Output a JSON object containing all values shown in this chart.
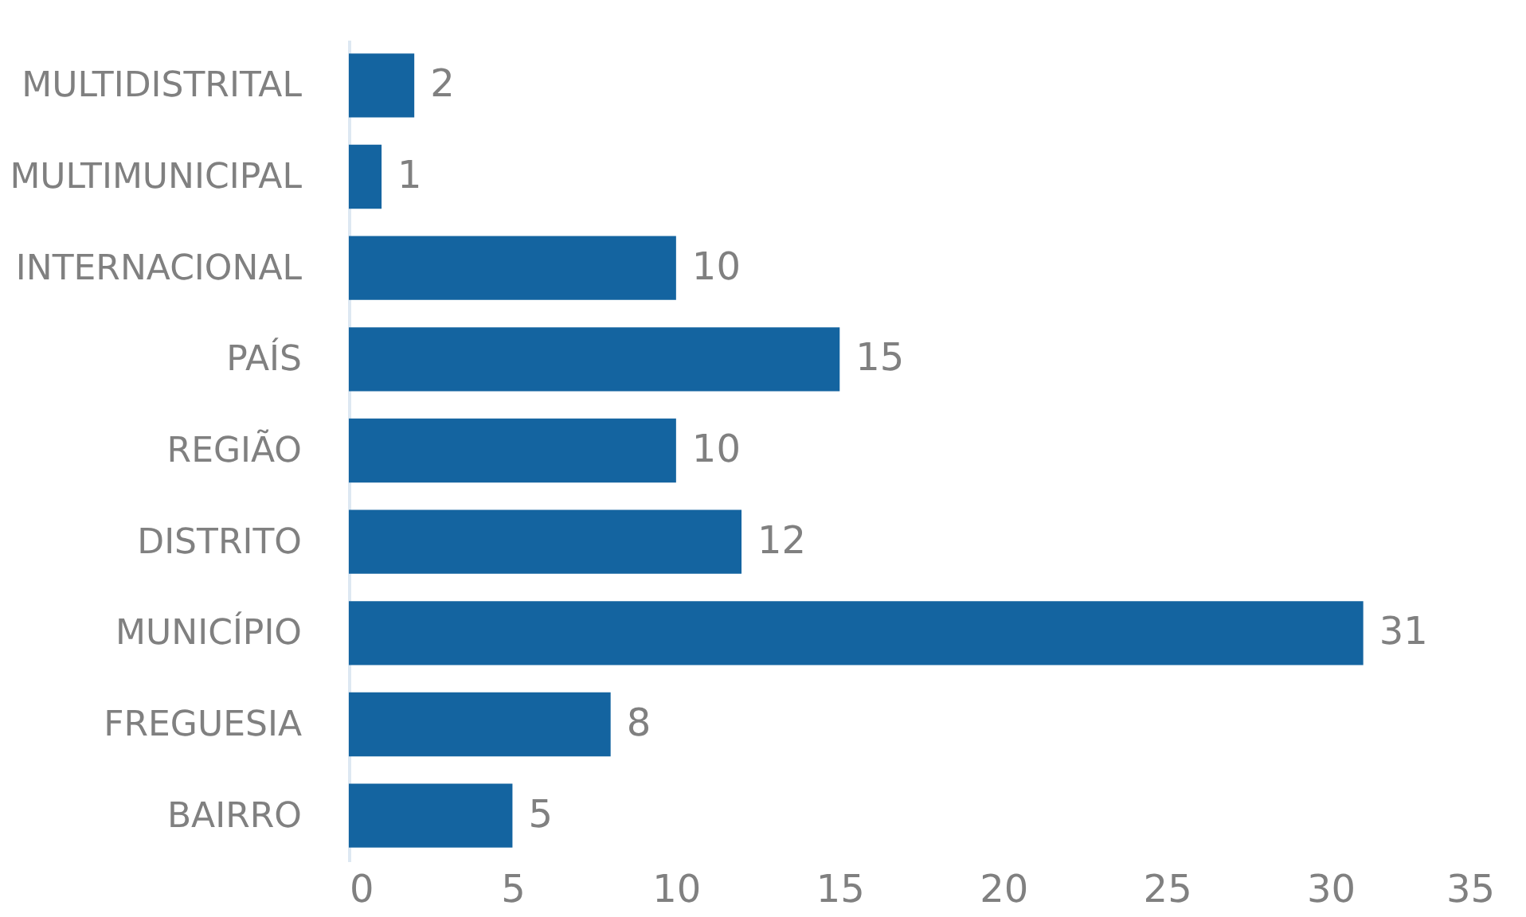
{
  "chart_data": {
    "type": "bar",
    "orientation": "horizontal",
    "categories": [
      "MULTIDISTRITAL",
      "MULTIMUNICIPAL",
      "INTERNACIONAL",
      "PAÍS",
      "REGIÃO",
      "DISTRITO",
      "MUNICÍPIO",
      "FREGUESIA",
      "BAIRRO"
    ],
    "values": [
      2,
      1,
      10,
      15,
      10,
      12,
      31,
      8,
      5
    ],
    "color": "#1464a0",
    "xlim": [
      0,
      35
    ],
    "xticks": [
      0,
      5,
      10,
      15,
      20,
      25,
      30,
      35
    ],
    "grid": false,
    "data_labels": true
  }
}
